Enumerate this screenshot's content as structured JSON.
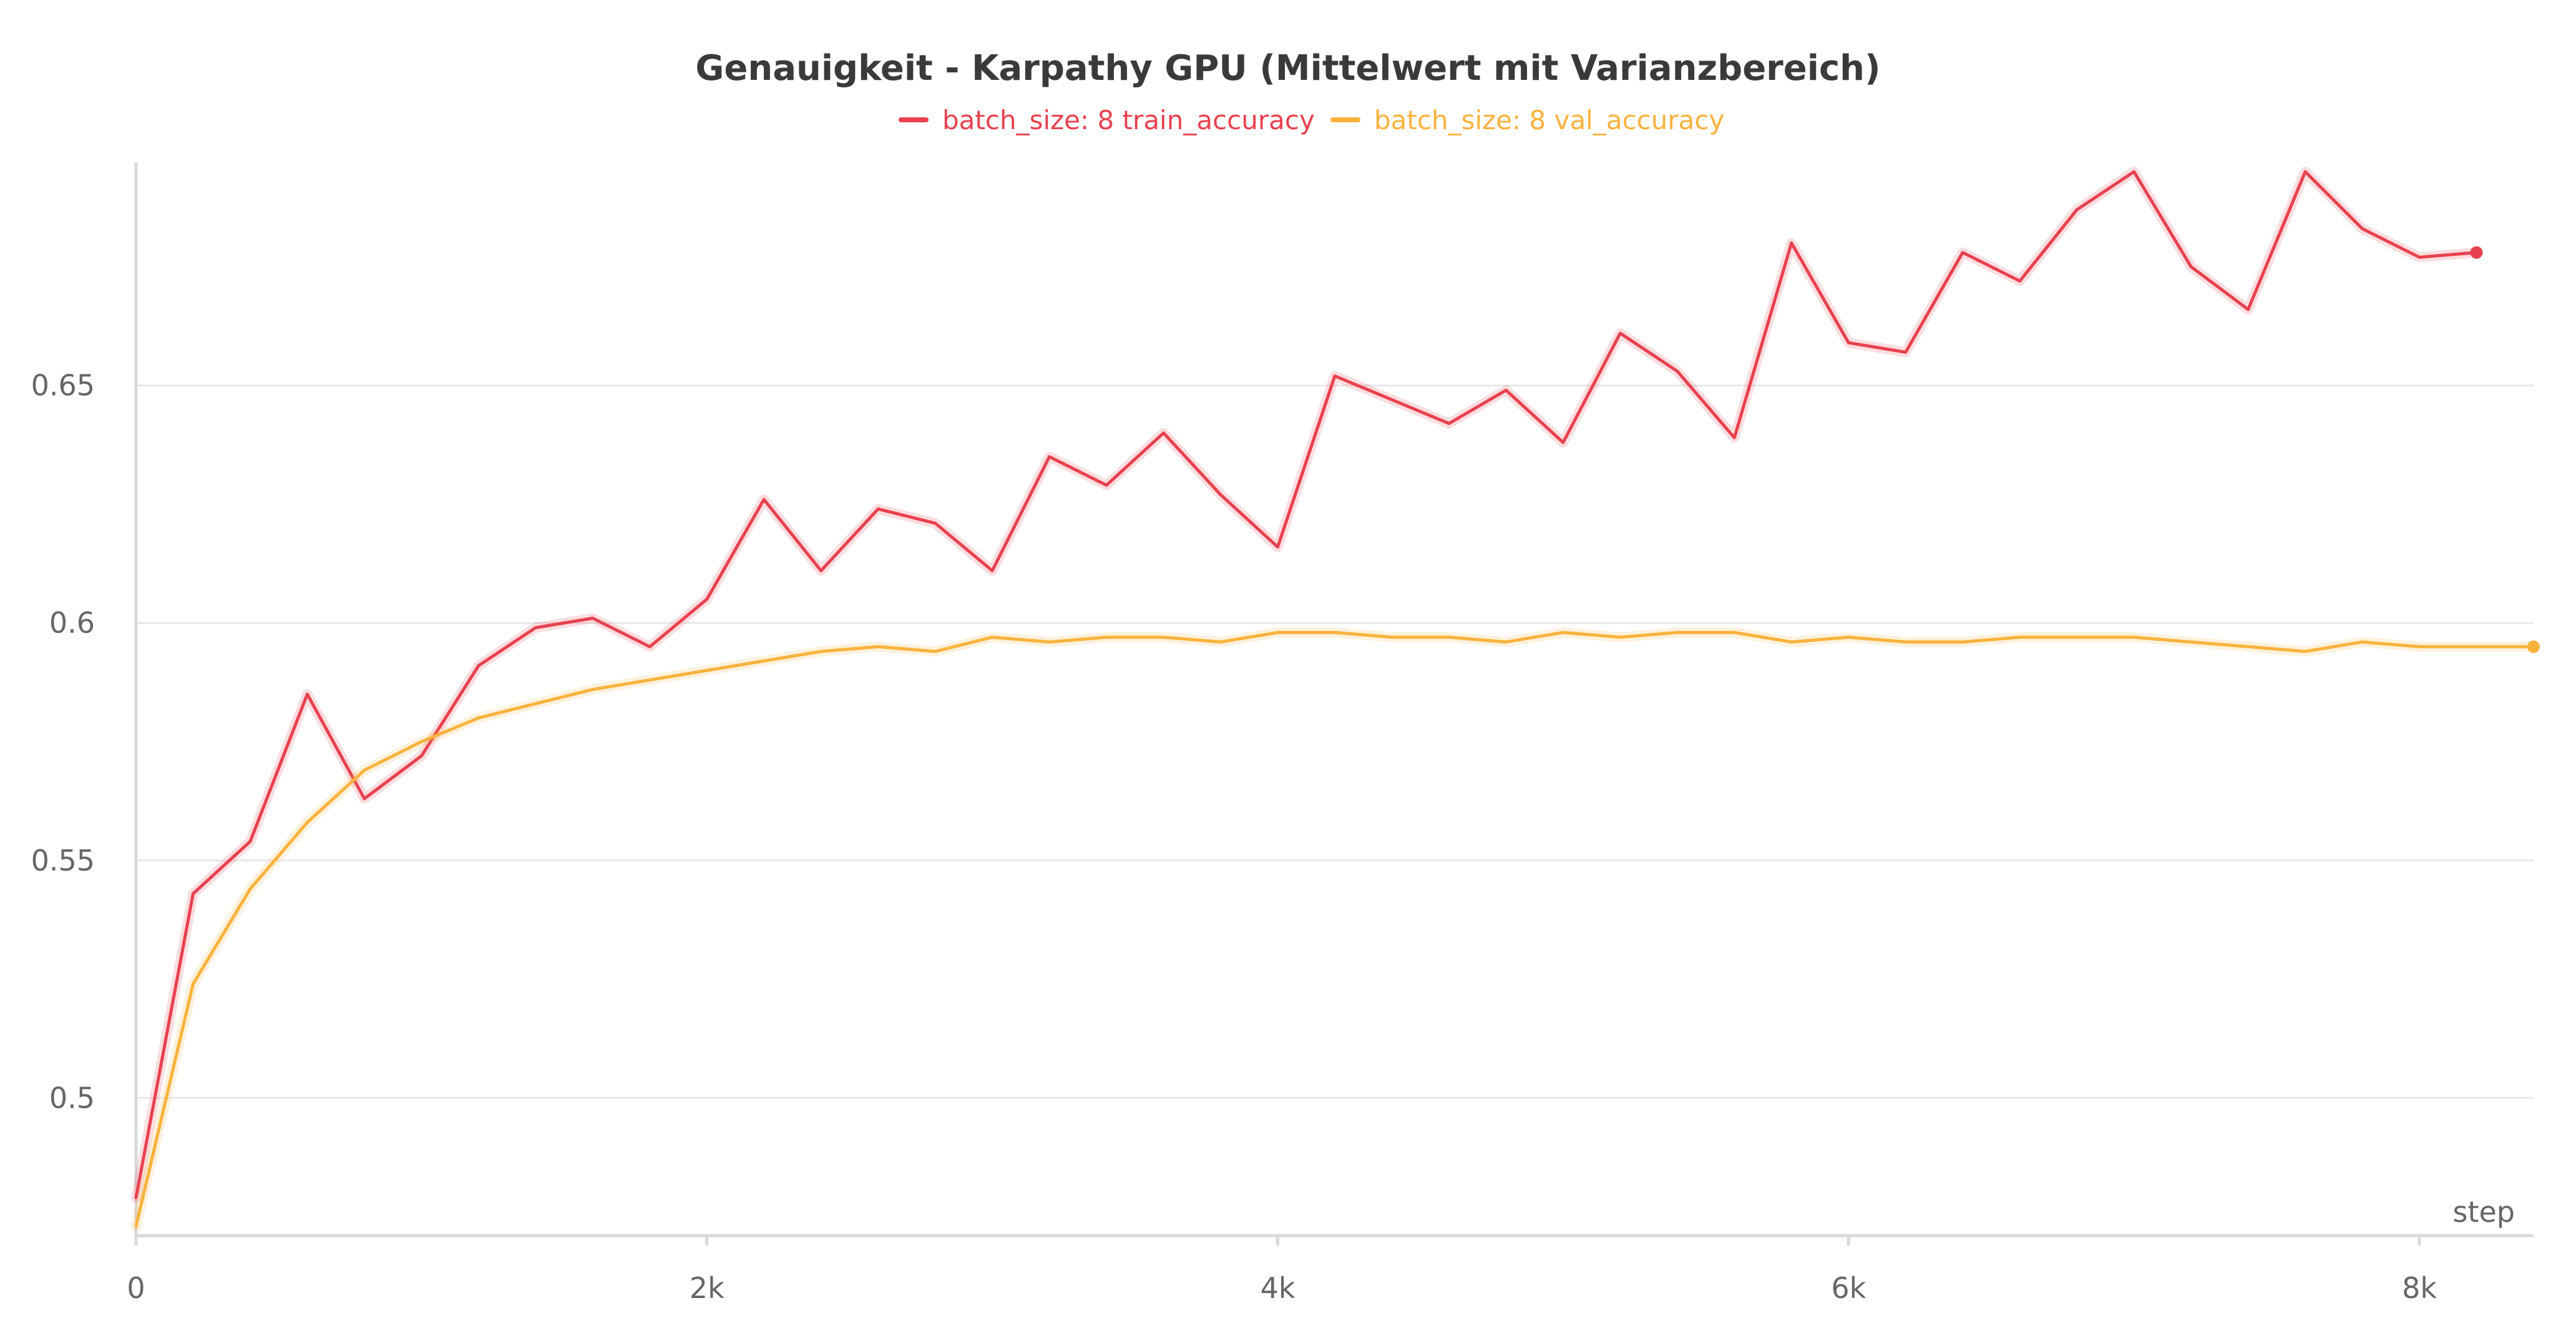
{
  "chart_data": {
    "type": "line",
    "title": "Genauigkeit - Karpathy GPU (Mittelwert mit Varianzbereich)",
    "xlabel": "step",
    "ylabel": "",
    "xlim": [
      0,
      8400
    ],
    "ylim": [
      0.471,
      0.697
    ],
    "x_ticks": [
      0,
      2000,
      4000,
      6000,
      8000
    ],
    "x_tick_labels": [
      "0",
      "2k",
      "4k",
      "6k",
      "8k"
    ],
    "y_ticks": [
      0.5,
      0.55,
      0.6,
      0.65
    ],
    "y_tick_labels": [
      "0.5",
      "0.55",
      "0.6",
      "0.65"
    ],
    "grid": true,
    "legend_position": "top-center",
    "series": [
      {
        "name": "batch_size: 8 train_accuracy",
        "color": "#e8414f",
        "x": [
          0,
          200,
          400,
          600,
          800,
          1000,
          1200,
          1400,
          1600,
          1800,
          2000,
          2200,
          2400,
          2600,
          2800,
          3000,
          3200,
          3400,
          3600,
          3800,
          4000,
          4200,
          4400,
          4600,
          4800,
          5000,
          5200,
          5400,
          5600,
          5800,
          6000,
          6200,
          6400,
          6600,
          6800,
          7000,
          7200,
          7400,
          7600,
          7800,
          8000,
          8200
        ],
        "values": [
          0.479,
          0.543,
          0.554,
          0.585,
          0.563,
          0.572,
          0.591,
          0.599,
          0.601,
          0.595,
          0.605,
          0.626,
          0.611,
          0.624,
          0.621,
          0.611,
          0.635,
          0.629,
          0.64,
          0.627,
          0.616,
          0.652,
          0.647,
          0.642,
          0.649,
          0.638,
          0.661,
          0.653,
          0.639,
          0.68,
          0.659,
          0.657,
          0.678,
          0.672,
          0.687,
          0.695,
          0.675,
          0.666,
          0.695,
          0.683,
          0.677,
          0.678
        ]
      },
      {
        "name": "batch_size: 8 val_accuracy",
        "color": "#fbb23c",
        "x": [
          0,
          200,
          400,
          600,
          800,
          1000,
          1200,
          1400,
          1600,
          1800,
          2000,
          2200,
          2400,
          2600,
          2800,
          3000,
          3200,
          3400,
          3600,
          3800,
          4000,
          4200,
          4400,
          4600,
          4800,
          5000,
          5200,
          5400,
          5600,
          5800,
          6000,
          6200,
          6400,
          6600,
          6800,
          7000,
          7200,
          7400,
          7600,
          7800,
          8000,
          8200,
          8400
        ],
        "values": [
          0.473,
          0.524,
          0.544,
          0.558,
          0.569,
          0.575,
          0.58,
          0.583,
          0.586,
          0.588,
          0.59,
          0.592,
          0.594,
          0.595,
          0.594,
          0.597,
          0.596,
          0.597,
          0.597,
          0.596,
          0.598,
          0.598,
          0.597,
          0.597,
          0.596,
          0.598,
          0.597,
          0.598,
          0.598,
          0.596,
          0.597,
          0.596,
          0.596,
          0.597,
          0.597,
          0.597,
          0.596,
          0.595,
          0.594,
          0.596,
          0.595,
          0.595,
          0.595
        ]
      }
    ]
  }
}
